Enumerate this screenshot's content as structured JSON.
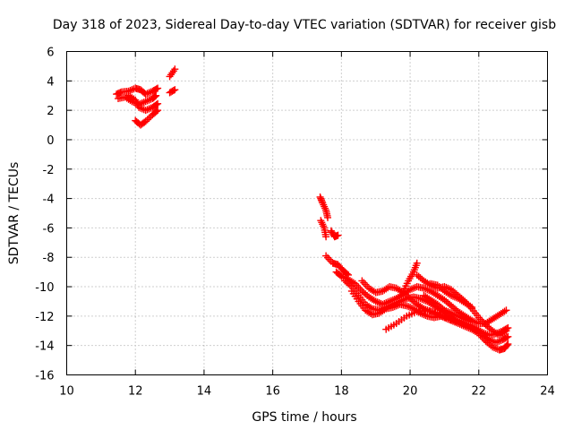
{
  "chart_data": {
    "type": "scatter",
    "title": "Day 318 of 2023, Sidereal Day-to-day VTEC variation (SDTVAR) for receiver gisb",
    "xlabel": "GPS time / hours",
    "ylabel": "SDTVAR / TECUs",
    "xlim": [
      10,
      24
    ],
    "ylim": [
      -16,
      6
    ],
    "xticks": [
      "10",
      "12",
      "14",
      "16",
      "18",
      "20",
      "22",
      "24"
    ],
    "yticks": [
      "6",
      "4",
      "2",
      "0",
      "-2",
      "-4",
      "-6",
      "-8",
      "-10",
      "-12",
      "-14",
      "-16"
    ],
    "grid": true,
    "marker": "+",
    "series": [
      {
        "name": "gisb",
        "color": "#ff0000",
        "tracks": [
          [
            [
              11.45,
              3.1
            ],
            [
              11.6,
              3.25
            ],
            [
              11.8,
              3.3
            ],
            [
              12.0,
              3.5
            ],
            [
              12.15,
              3.4
            ],
            [
              12.3,
              3.1
            ],
            [
              12.5,
              3.3
            ],
            [
              12.65,
              3.5
            ]
          ],
          [
            [
              11.5,
              2.8
            ],
            [
              11.7,
              2.9
            ],
            [
              11.9,
              2.6
            ],
            [
              12.1,
              2.4
            ],
            [
              12.3,
              2.6
            ],
            [
              12.5,
              2.8
            ],
            [
              12.6,
              3.0
            ]
          ],
          [
            [
              11.8,
              3.0
            ],
            [
              12.0,
              2.7
            ],
            [
              12.1,
              2.2
            ],
            [
              12.3,
              2.0
            ],
            [
              12.5,
              2.2
            ],
            [
              12.65,
              2.45
            ]
          ],
          [
            [
              12.0,
              1.3
            ],
            [
              12.15,
              1.0
            ],
            [
              12.3,
              1.25
            ],
            [
              12.5,
              1.7
            ],
            [
              12.65,
              2.0
            ]
          ],
          [
            [
              13.0,
              4.3
            ],
            [
              13.15,
              4.8
            ]
          ],
          [
            [
              13.0,
              3.2
            ],
            [
              13.15,
              3.4
            ]
          ],
          [
            [
              17.38,
              -3.9
            ],
            [
              17.45,
              -4.3
            ],
            [
              17.55,
              -4.8
            ],
            [
              17.6,
              -5.3
            ]
          ],
          [
            [
              17.4,
              -5.5
            ],
            [
              17.5,
              -6.0
            ],
            [
              17.55,
              -6.6
            ]
          ],
          [
            [
              17.7,
              -6.2
            ],
            [
              17.8,
              -6.6
            ],
            [
              17.9,
              -6.5
            ]
          ],
          [
            [
              17.55,
              -7.9
            ],
            [
              17.75,
              -8.4
            ],
            [
              17.9,
              -8.5
            ],
            [
              18.05,
              -8.9
            ],
            [
              18.2,
              -9.2
            ]
          ],
          [
            [
              17.85,
              -9.0
            ],
            [
              18.0,
              -9.3
            ],
            [
              18.2,
              -9.5
            ],
            [
              18.4,
              -9.8
            ],
            [
              18.6,
              -10.3
            ],
            [
              18.8,
              -10.7
            ],
            [
              19.0,
              -11.0
            ],
            [
              19.2,
              -11.2
            ],
            [
              19.4,
              -11.0
            ],
            [
              19.6,
              -10.8
            ],
            [
              19.8,
              -10.5
            ],
            [
              20.0,
              -10.2
            ],
            [
              20.2,
              -10.0
            ],
            [
              20.4,
              -10.1
            ],
            [
              20.6,
              -10.3
            ],
            [
              20.8,
              -10.6
            ],
            [
              21.0,
              -10.9
            ],
            [
              21.2,
              -11.3
            ],
            [
              21.4,
              -11.7
            ],
            [
              21.6,
              -12.0
            ],
            [
              21.8,
              -12.3
            ],
            [
              22.0,
              -12.5
            ],
            [
              22.2,
              -12.5
            ],
            [
              22.4,
              -12.2
            ],
            [
              22.6,
              -11.9
            ],
            [
              22.8,
              -11.6
            ]
          ],
          [
            [
              18.1,
              -9.6
            ],
            [
              18.3,
              -10.0
            ],
            [
              18.5,
              -10.6
            ],
            [
              18.7,
              -11.2
            ],
            [
              18.9,
              -11.5
            ],
            [
              19.1,
              -11.6
            ],
            [
              19.3,
              -11.4
            ],
            [
              19.5,
              -11.2
            ],
            [
              19.7,
              -11.0
            ],
            [
              19.9,
              -10.8
            ],
            [
              20.1,
              -10.7
            ],
            [
              20.3,
              -10.8
            ],
            [
              20.5,
              -11.0
            ],
            [
              20.7,
              -11.3
            ],
            [
              20.9,
              -11.6
            ],
            [
              21.1,
              -11.9
            ],
            [
              21.3,
              -12.2
            ],
            [
              21.5,
              -12.4
            ],
            [
              21.7,
              -12.6
            ],
            [
              21.9,
              -12.8
            ],
            [
              22.1,
              -13.1
            ],
            [
              22.3,
              -13.3
            ],
            [
              22.5,
              -13.2
            ],
            [
              22.7,
              -13.0
            ],
            [
              22.85,
              -12.8
            ]
          ],
          [
            [
              18.3,
              -10.3
            ],
            [
              18.5,
              -11.0
            ],
            [
              18.7,
              -11.6
            ],
            [
              18.9,
              -11.9
            ],
            [
              19.1,
              -11.8
            ],
            [
              19.3,
              -11.5
            ],
            [
              19.5,
              -11.4
            ],
            [
              19.7,
              -11.2
            ],
            [
              19.9,
              -11.3
            ],
            [
              20.1,
              -11.5
            ],
            [
              20.3,
              -11.8
            ],
            [
              20.5,
              -12.0
            ],
            [
              20.7,
              -12.1
            ],
            [
              20.9,
              -12.0
            ],
            [
              21.1,
              -12.1
            ],
            [
              21.3,
              -12.3
            ],
            [
              21.5,
              -12.5
            ],
            [
              21.7,
              -12.7
            ],
            [
              21.9,
              -12.9
            ],
            [
              22.1,
              -13.3
            ],
            [
              22.3,
              -13.6
            ],
            [
              22.5,
              -13.8
            ],
            [
              22.7,
              -13.6
            ],
            [
              22.85,
              -13.4
            ]
          ],
          [
            [
              18.6,
              -9.6
            ],
            [
              18.8,
              -10.1
            ],
            [
              19.0,
              -10.4
            ],
            [
              19.2,
              -10.3
            ],
            [
              19.4,
              -10.0
            ],
            [
              19.6,
              -10.1
            ],
            [
              19.8,
              -10.4
            ],
            [
              20.0,
              -10.8
            ],
            [
              20.2,
              -11.2
            ],
            [
              20.4,
              -11.5
            ],
            [
              20.6,
              -11.7
            ],
            [
              20.8,
              -11.9
            ],
            [
              21.0,
              -12.1
            ],
            [
              21.2,
              -12.3
            ],
            [
              21.4,
              -12.5
            ],
            [
              21.6,
              -12.7
            ],
            [
              21.8,
              -12.9
            ],
            [
              22.0,
              -13.2
            ],
            [
              22.2,
              -13.7
            ],
            [
              22.4,
              -14.1
            ],
            [
              22.6,
              -14.3
            ],
            [
              22.75,
              -14.2
            ],
            [
              22.85,
              -13.9
            ]
          ],
          [
            [
              19.3,
              -12.9
            ],
            [
              19.6,
              -12.5
            ],
            [
              19.9,
              -12.0
            ],
            [
              20.2,
              -11.7
            ],
            [
              20.5,
              -11.6
            ],
            [
              20.8,
              -11.8
            ],
            [
              21.1,
              -12.2
            ],
            [
              21.4,
              -12.4
            ]
          ],
          [
            [
              19.8,
              -10.3
            ],
            [
              19.95,
              -9.6
            ],
            [
              20.1,
              -9.0
            ],
            [
              20.2,
              -8.4
            ]
          ],
          [
            [
              20.2,
              -9.2
            ],
            [
              20.4,
              -9.6
            ],
            [
              20.6,
              -9.9
            ],
            [
              20.8,
              -10.1
            ],
            [
              21.0,
              -10.0
            ],
            [
              21.2,
              -10.2
            ],
            [
              21.4,
              -10.6
            ],
            [
              21.6,
              -11.0
            ],
            [
              21.8,
              -11.5
            ],
            [
              22.0,
              -12.1
            ],
            [
              22.2,
              -12.6
            ],
            [
              22.4,
              -13.0
            ],
            [
              22.6,
              -13.3
            ],
            [
              22.8,
              -13.0
            ]
          ],
          [
            [
              20.4,
              -10.6
            ],
            [
              20.6,
              -10.9
            ],
            [
              20.8,
              -11.2
            ],
            [
              21.0,
              -11.6
            ],
            [
              21.2,
              -11.8
            ],
            [
              21.4,
              -12.0
            ],
            [
              21.6,
              -12.2
            ],
            [
              21.8,
              -12.4
            ]
          ],
          [
            [
              20.6,
              -9.8
            ],
            [
              20.8,
              -9.9
            ],
            [
              21.0,
              -10.3
            ],
            [
              21.2,
              -10.6
            ],
            [
              21.4,
              -10.8
            ],
            [
              21.6,
              -11.1
            ],
            [
              21.8,
              -11.4
            ]
          ]
        ]
      }
    ]
  }
}
